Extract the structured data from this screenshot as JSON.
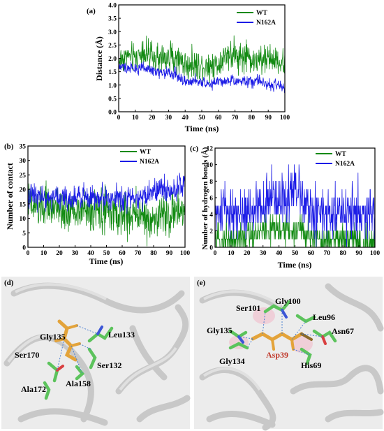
{
  "colors": {
    "wt": "#128a12",
    "n162a": "#1c1ce6",
    "accent_residue": "#c0392b",
    "stick_green": "#5cc35c",
    "stick_orange": "#e3a33a"
  },
  "chart_data": [
    {
      "id": "a",
      "panel_label": "(a)",
      "type": "line",
      "xlabel": "Time (ns)",
      "ylabel": "Distance (Å)",
      "xlim": [
        0,
        100
      ],
      "ylim": [
        0,
        4.0
      ],
      "xticks": [
        "0",
        "10",
        "20",
        "30",
        "40",
        "50",
        "60",
        "70",
        "80",
        "90",
        "100"
      ],
      "yticks": [
        "0.0",
        "0.5",
        "1.0",
        "1.5",
        "2.0",
        "2.5",
        "3.0",
        "3.5",
        "4.0"
      ],
      "legend_position": "top-right",
      "series": [
        {
          "name": "WT",
          "color_key": "wt",
          "x": [
            0,
            5,
            10,
            15,
            20,
            25,
            30,
            35,
            40,
            45,
            50,
            55,
            60,
            65,
            70,
            75,
            80,
            85,
            90,
            95,
            100
          ],
          "y": [
            1.9,
            2.1,
            2.0,
            2.3,
            2.0,
            1.9,
            2.1,
            2.0,
            1.75,
            1.7,
            1.75,
            1.7,
            1.8,
            2.2,
            2.1,
            2.0,
            2.0,
            1.8,
            2.0,
            1.9,
            1.8
          ],
          "noise": 0.35
        },
        {
          "name": "N162A",
          "color_key": "n162a",
          "x": [
            0,
            5,
            10,
            15,
            20,
            25,
            30,
            35,
            40,
            45,
            50,
            55,
            60,
            65,
            70,
            75,
            80,
            85,
            90,
            95,
            100
          ],
          "y": [
            1.7,
            1.65,
            1.6,
            1.6,
            1.55,
            1.5,
            1.45,
            1.35,
            1.15,
            1.1,
            1.1,
            1.05,
            1.1,
            1.1,
            1.1,
            1.15,
            1.1,
            1.15,
            1.0,
            1.0,
            0.9
          ],
          "noise": 0.14
        }
      ]
    },
    {
      "id": "b",
      "panel_label": "(b)",
      "type": "line",
      "xlabel": "Time (ns)",
      "ylabel": "Number of contact",
      "xlim": [
        0,
        100
      ],
      "ylim": [
        0,
        35
      ],
      "xticks": [
        "0",
        "10",
        "20",
        "30",
        "40",
        "50",
        "60",
        "70",
        "80",
        "90",
        "100"
      ],
      "yticks": [
        "0",
        "5",
        "10",
        "15",
        "20",
        "25",
        "30",
        "35"
      ],
      "legend_position": "top-right",
      "series": [
        {
          "name": "WT",
          "color_key": "wt",
          "x": [
            0,
            5,
            10,
            15,
            20,
            25,
            30,
            35,
            40,
            45,
            50,
            55,
            60,
            65,
            70,
            75,
            80,
            85,
            90,
            95,
            100
          ],
          "y": [
            15,
            14,
            14,
            13,
            13,
            12,
            12,
            13,
            12,
            13,
            12,
            11,
            11,
            11,
            12,
            10,
            10,
            11,
            11,
            12,
            12
          ],
          "noise": 4.5
        },
        {
          "name": "N162A",
          "color_key": "n162a",
          "x": [
            0,
            5,
            10,
            15,
            20,
            25,
            30,
            35,
            40,
            45,
            50,
            55,
            60,
            65,
            70,
            75,
            80,
            85,
            90,
            95,
            100
          ],
          "y": [
            18,
            18,
            17,
            17,
            17,
            17,
            17,
            17,
            17,
            17,
            17,
            17,
            17,
            17,
            17,
            18,
            19,
            20,
            20,
            21,
            21
          ],
          "noise": 2.8
        }
      ]
    },
    {
      "id": "c",
      "panel_label": "(c)",
      "type": "line",
      "xlabel": "Time (ns)",
      "ylabel": "Number of hydrogen bonds (Å)",
      "xlim": [
        0,
        100
      ],
      "ylim": [
        0,
        12
      ],
      "xticks": [
        "0",
        "10",
        "20",
        "30",
        "40",
        "50",
        "60",
        "70",
        "80",
        "90",
        "100"
      ],
      "yticks": [
        "0",
        "2",
        "4",
        "6",
        "8",
        "10",
        "12"
      ],
      "legend_position": "top-right",
      "series": [
        {
          "name": "WT",
          "color_key": "wt",
          "x": [
            0,
            5,
            10,
            15,
            20,
            25,
            30,
            35,
            40,
            45,
            50,
            55,
            60,
            65,
            70,
            75,
            80,
            85,
            90,
            95,
            100
          ],
          "y": [
            1,
            1,
            1,
            1,
            1,
            2,
            2,
            2,
            2,
            2,
            2,
            2,
            1,
            1,
            1,
            1,
            1,
            1,
            0.5,
            0.5,
            0.5
          ],
          "noise": 1.2
        },
        {
          "name": "N162A",
          "color_key": "n162a",
          "x": [
            0,
            5,
            10,
            15,
            20,
            25,
            30,
            35,
            40,
            45,
            50,
            55,
            60,
            65,
            70,
            75,
            80,
            85,
            90,
            95,
            100
          ],
          "y": [
            4,
            4,
            4,
            4,
            4,
            5,
            5,
            6,
            6,
            6,
            6,
            6,
            4,
            4,
            4,
            4,
            4,
            4,
            4,
            4,
            4
          ],
          "noise": 2.0
        }
      ]
    }
  ],
  "structures": [
    {
      "panel_label": "(d)",
      "residues": [
        "Gly135",
        "Leu133",
        "Ser170",
        "Ser132",
        "Ala158",
        "Ala172"
      ]
    },
    {
      "panel_label": "(e)",
      "residues": [
        "Gly100",
        "Ser101",
        "Leu96",
        "Asn67",
        "Gly135",
        "Gly134",
        "Asp39",
        "His69"
      ]
    }
  ]
}
